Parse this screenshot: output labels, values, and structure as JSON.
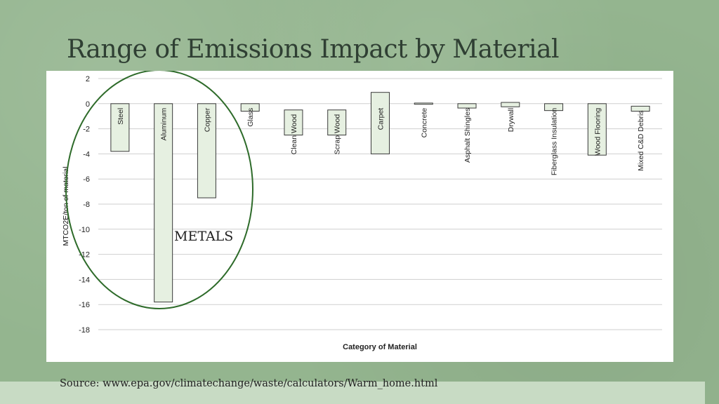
{
  "slide": {
    "title": "Range of Emissions Impact by Material",
    "source": "Source: www.epa.gov/climatechange/waste/calculators/Warm_home.html",
    "annotation": "METALS"
  },
  "colors": {
    "background": "#94b58f",
    "bar_fill": "#e6f0e1",
    "bar_stroke": "#3a3a3a",
    "ellipse": "#2e6b2a"
  },
  "chart_data": {
    "type": "bar",
    "ylabel": "MTCO2E/ton of material",
    "xlabel": "Category of Material",
    "ylim": [
      -18,
      2
    ],
    "yticks": [
      2,
      0,
      -2,
      -4,
      -6,
      -8,
      -10,
      -12,
      -14,
      -16,
      -18
    ],
    "grid": true,
    "categories": [
      "Steel",
      "Aluminum",
      "Copper",
      "Glass",
      "Clean Wood",
      "Scrap Wood",
      "Carpet",
      "Concrete",
      "Asphalt Shingles",
      "Drywall",
      "Fiberglass Insulation",
      "Wood Flooring",
      "Mixed C&D Debris"
    ],
    "bars": [
      {
        "low": -3.8,
        "high": 0
      },
      {
        "low": -15.8,
        "high": 0
      },
      {
        "low": -7.5,
        "high": 0
      },
      {
        "low": -0.6,
        "high": 0
      },
      {
        "low": -2.5,
        "high": -0.5
      },
      {
        "low": -2.5,
        "high": -0.5
      },
      {
        "low": -4.0,
        "high": 0.9
      },
      {
        "low": -0.05,
        "high": 0.05
      },
      {
        "low": -0.35,
        "high": 0
      },
      {
        "low": -0.25,
        "high": 0.1
      },
      {
        "low": -0.55,
        "high": 0
      },
      {
        "low": -4.1,
        "high": 0
      },
      {
        "low": -0.6,
        "high": -0.2
      }
    ]
  }
}
